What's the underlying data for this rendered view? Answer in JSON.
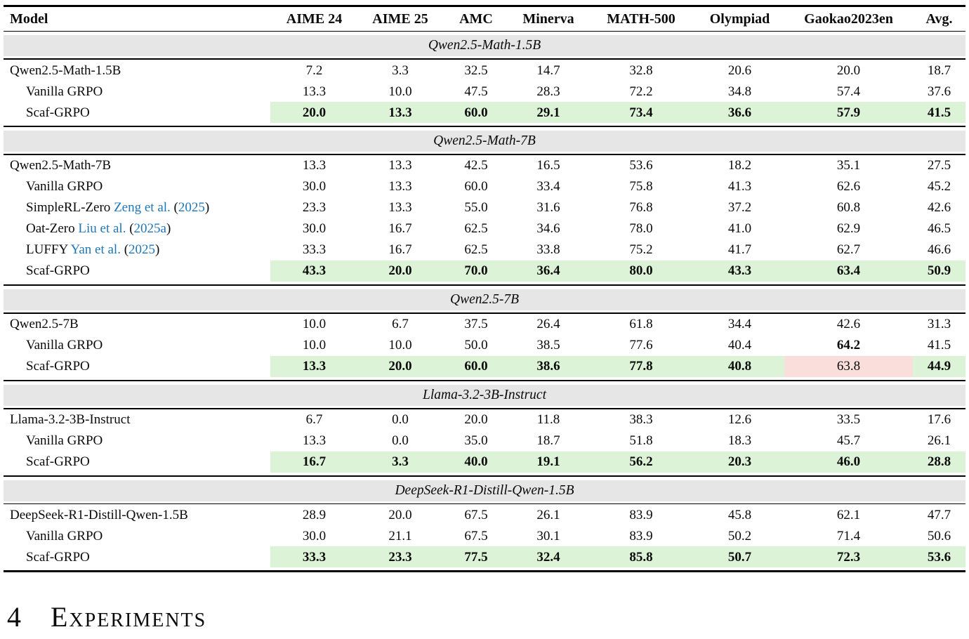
{
  "colors": {
    "highlight_green": "#ddf3d8",
    "highlight_red": "#f9dedb",
    "band_gray": "#e6e6e6",
    "citation_blue": "#2077b8"
  },
  "table": {
    "header": [
      "Model",
      "AIME 24",
      "AIME 25",
      "AMC",
      "Minerva",
      "MATH-500",
      "Olympiad",
      "Gaokao2023en",
      "Avg."
    ],
    "sections": [
      {
        "group_label": "Qwen2.5-Math-1.5B",
        "rows": [
          {
            "label": "Qwen2.5-Math-1.5B",
            "indent": false,
            "cells": [
              {
                "v": "7.2"
              },
              {
                "v": "3.3"
              },
              {
                "v": "32.5"
              },
              {
                "v": "14.7"
              },
              {
                "v": "32.8"
              },
              {
                "v": "20.6"
              },
              {
                "v": "20.0"
              },
              {
                "v": "18.7"
              }
            ]
          },
          {
            "label": "Vanilla GRPO",
            "indent": true,
            "cells": [
              {
                "v": "13.3"
              },
              {
                "v": "10.0"
              },
              {
                "v": "47.5"
              },
              {
                "v": "28.3"
              },
              {
                "v": "72.2"
              },
              {
                "v": "34.8"
              },
              {
                "v": "57.4"
              },
              {
                "v": "37.6"
              }
            ]
          },
          {
            "label": "Scaf-GRPO",
            "indent": true,
            "cells": [
              {
                "v": "20.0",
                "b": true,
                "hl": "g"
              },
              {
                "v": "13.3",
                "b": true,
                "hl": "g"
              },
              {
                "v": "60.0",
                "b": true,
                "hl": "g"
              },
              {
                "v": "29.1",
                "b": true,
                "hl": "g"
              },
              {
                "v": "73.4",
                "b": true,
                "hl": "g"
              },
              {
                "v": "36.6",
                "b": true,
                "hl": "g"
              },
              {
                "v": "57.9",
                "b": true,
                "hl": "g"
              },
              {
                "v": "41.5",
                "b": true,
                "hl": "g"
              }
            ]
          }
        ]
      },
      {
        "group_label": "Qwen2.5-Math-7B",
        "rows": [
          {
            "label": "Qwen2.5-Math-7B",
            "indent": false,
            "cells": [
              {
                "v": "13.3"
              },
              {
                "v": "13.3"
              },
              {
                "v": "42.5"
              },
              {
                "v": "16.5"
              },
              {
                "v": "53.6"
              },
              {
                "v": "18.2"
              },
              {
                "v": "35.1"
              },
              {
                "v": "27.5"
              }
            ]
          },
          {
            "label": "Vanilla GRPO",
            "indent": true,
            "cells": [
              {
                "v": "30.0"
              },
              {
                "v": "13.3"
              },
              {
                "v": "60.0"
              },
              {
                "v": "33.4"
              },
              {
                "v": "75.8"
              },
              {
                "v": "41.3"
              },
              {
                "v": "62.6"
              },
              {
                "v": "45.2"
              }
            ]
          },
          {
            "label": "SimpleRL-Zero",
            "cite": "Zeng et al.",
            "year": "2025",
            "indent": true,
            "cells": [
              {
                "v": "23.3"
              },
              {
                "v": "13.3"
              },
              {
                "v": "55.0"
              },
              {
                "v": "31.6"
              },
              {
                "v": "76.8"
              },
              {
                "v": "37.2"
              },
              {
                "v": "60.8"
              },
              {
                "v": "42.6"
              }
            ]
          },
          {
            "label": "Oat-Zero",
            "cite": "Liu et al.",
            "year": "2025a",
            "indent": true,
            "cells": [
              {
                "v": "30.0"
              },
              {
                "v": "16.7"
              },
              {
                "v": "62.5"
              },
              {
                "v": "34.6"
              },
              {
                "v": "78.0"
              },
              {
                "v": "41.0"
              },
              {
                "v": "62.9"
              },
              {
                "v": "46.5"
              }
            ]
          },
          {
            "label": "LUFFY",
            "cite": "Yan et al.",
            "year": "2025",
            "indent": true,
            "cells": [
              {
                "v": "33.3"
              },
              {
                "v": "16.7"
              },
              {
                "v": "62.5"
              },
              {
                "v": "33.8"
              },
              {
                "v": "75.2"
              },
              {
                "v": "41.7"
              },
              {
                "v": "62.7"
              },
              {
                "v": "46.6"
              }
            ]
          },
          {
            "label": "Scaf-GRPO",
            "indent": true,
            "cells": [
              {
                "v": "43.3",
                "b": true,
                "hl": "g"
              },
              {
                "v": "20.0",
                "b": true,
                "hl": "g"
              },
              {
                "v": "70.0",
                "b": true,
                "hl": "g"
              },
              {
                "v": "36.4",
                "b": true,
                "hl": "g"
              },
              {
                "v": "80.0",
                "b": true,
                "hl": "g"
              },
              {
                "v": "43.3",
                "b": true,
                "hl": "g"
              },
              {
                "v": "63.4",
                "b": true,
                "hl": "g"
              },
              {
                "v": "50.9",
                "b": true,
                "hl": "g"
              }
            ]
          }
        ]
      },
      {
        "group_label": "Qwen2.5-7B",
        "rows": [
          {
            "label": "Qwen2.5-7B",
            "indent": false,
            "cells": [
              {
                "v": "10.0"
              },
              {
                "v": "6.7"
              },
              {
                "v": "37.5"
              },
              {
                "v": "26.4"
              },
              {
                "v": "61.8"
              },
              {
                "v": "34.4"
              },
              {
                "v": "42.6"
              },
              {
                "v": "31.3"
              }
            ]
          },
          {
            "label": "Vanilla GRPO",
            "indent": true,
            "cells": [
              {
                "v": "10.0"
              },
              {
                "v": "10.0"
              },
              {
                "v": "50.0"
              },
              {
                "v": "38.5"
              },
              {
                "v": "77.6"
              },
              {
                "v": "40.4"
              },
              {
                "v": "64.2",
                "b": true
              },
              {
                "v": "41.5"
              }
            ]
          },
          {
            "label": "Scaf-GRPO",
            "indent": true,
            "cells": [
              {
                "v": "13.3",
                "b": true,
                "hl": "g"
              },
              {
                "v": "20.0",
                "b": true,
                "hl": "g"
              },
              {
                "v": "60.0",
                "b": true,
                "hl": "g"
              },
              {
                "v": "38.6",
                "b": true,
                "hl": "g"
              },
              {
                "v": "77.8",
                "b": true,
                "hl": "g"
              },
              {
                "v": "40.8",
                "b": true,
                "hl": "g"
              },
              {
                "v": "63.8",
                "hl": "r"
              },
              {
                "v": "44.9",
                "b": true,
                "hl": "g"
              }
            ]
          }
        ]
      },
      {
        "group_label": "Llama-3.2-3B-Instruct",
        "rows": [
          {
            "label": "Llama-3.2-3B-Instruct",
            "indent": false,
            "cells": [
              {
                "v": "6.7"
              },
              {
                "v": "0.0"
              },
              {
                "v": "20.0"
              },
              {
                "v": "11.8"
              },
              {
                "v": "38.3"
              },
              {
                "v": "12.6"
              },
              {
                "v": "33.5"
              },
              {
                "v": "17.6"
              }
            ]
          },
          {
            "label": "Vanilla GRPO",
            "indent": true,
            "cells": [
              {
                "v": "13.3"
              },
              {
                "v": "0.0"
              },
              {
                "v": "35.0"
              },
              {
                "v": "18.7"
              },
              {
                "v": "51.8"
              },
              {
                "v": "18.3"
              },
              {
                "v": "45.7"
              },
              {
                "v": "26.1"
              }
            ]
          },
          {
            "label": "Scaf-GRPO",
            "indent": true,
            "cells": [
              {
                "v": "16.7",
                "b": true,
                "hl": "g"
              },
              {
                "v": "3.3",
                "b": true,
                "hl": "g"
              },
              {
                "v": "40.0",
                "b": true,
                "hl": "g"
              },
              {
                "v": "19.1",
                "b": true,
                "hl": "g"
              },
              {
                "v": "56.2",
                "b": true,
                "hl": "g"
              },
              {
                "v": "20.3",
                "b": true,
                "hl": "g"
              },
              {
                "v": "46.0",
                "b": true,
                "hl": "g"
              },
              {
                "v": "28.8",
                "b": true,
                "hl": "g"
              }
            ]
          }
        ]
      },
      {
        "group_label": "DeepSeek-R1-Distill-Qwen-1.5B",
        "rows": [
          {
            "label": "DeepSeek-R1-Distill-Qwen-1.5B",
            "indent": false,
            "cells": [
              {
                "v": "28.9"
              },
              {
                "v": "20.0"
              },
              {
                "v": "67.5"
              },
              {
                "v": "26.1"
              },
              {
                "v": "83.9"
              },
              {
                "v": "45.8"
              },
              {
                "v": "62.1"
              },
              {
                "v": "47.7"
              }
            ]
          },
          {
            "label": "Vanilla GRPO",
            "indent": true,
            "cells": [
              {
                "v": "30.0"
              },
              {
                "v": "21.1"
              },
              {
                "v": "67.5"
              },
              {
                "v": "30.1"
              },
              {
                "v": "83.9"
              },
              {
                "v": "50.2"
              },
              {
                "v": "71.4"
              },
              {
                "v": "50.6"
              }
            ]
          },
          {
            "label": "Scaf-GRPO",
            "indent": true,
            "cells": [
              {
                "v": "33.3",
                "b": true,
                "hl": "g"
              },
              {
                "v": "23.3",
                "b": true,
                "hl": "g"
              },
              {
                "v": "77.5",
                "b": true,
                "hl": "g"
              },
              {
                "v": "32.4",
                "b": true,
                "hl": "g"
              },
              {
                "v": "85.8",
                "b": true,
                "hl": "g"
              },
              {
                "v": "50.7",
                "b": true,
                "hl": "g"
              },
              {
                "v": "72.3",
                "b": true,
                "hl": "g"
              },
              {
                "v": "53.6",
                "b": true,
                "hl": "g"
              }
            ]
          }
        ]
      }
    ]
  },
  "heading": {
    "number": "4",
    "title": "Experiments"
  }
}
